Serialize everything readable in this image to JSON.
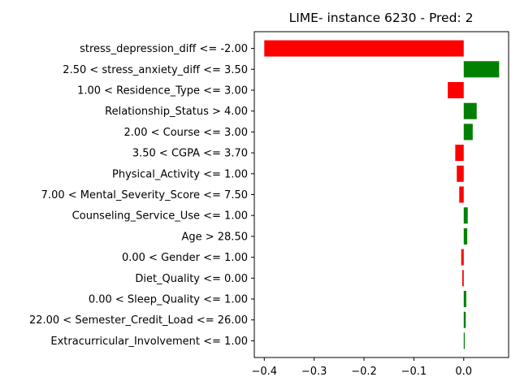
{
  "chart_data": {
    "type": "bar",
    "orientation": "horizontal",
    "title": "LIME- instance 6230 - Pred: 2",
    "xlabel": "",
    "ylabel": "",
    "xlim": [
      -0.42,
      0.09
    ],
    "xticks": [
      -0.4,
      -0.3,
      -0.2,
      -0.1,
      0.0
    ],
    "xtick_labels": [
      "−0.4",
      "−0.3",
      "−0.2",
      "−0.1",
      "0.0"
    ],
    "grid": false,
    "positive_color": "#008000",
    "negative_color": "#ff0000",
    "categories": [
      "stress_depression_diff <= -2.00",
      "2.50 < stress_anxiety_diff <= 3.50",
      "1.00 < Residence_Type <= 3.00",
      "Relationship_Status > 4.00",
      "2.00 < Course <= 3.00",
      "3.50 < CGPA <= 3.70",
      "Physical_Activity <= 1.00",
      "7.00 < Mental_Severity_Score <= 7.50",
      "Counseling_Service_Use <= 1.00",
      "Age > 28.50",
      "0.00 < Gender <= 1.00",
      "Diet_Quality <= 0.00",
      "0.00 < Sleep_Quality <= 1.00",
      "22.00 < Semester_Credit_Load <= 26.00",
      "Extracurricular_Involvement <= 1.00"
    ],
    "values": [
      -0.4,
      0.071,
      -0.032,
      0.026,
      0.018,
      -0.017,
      -0.014,
      -0.009,
      0.008,
      0.007,
      -0.005,
      -0.003,
      0.005,
      0.004,
      0.002
    ]
  }
}
